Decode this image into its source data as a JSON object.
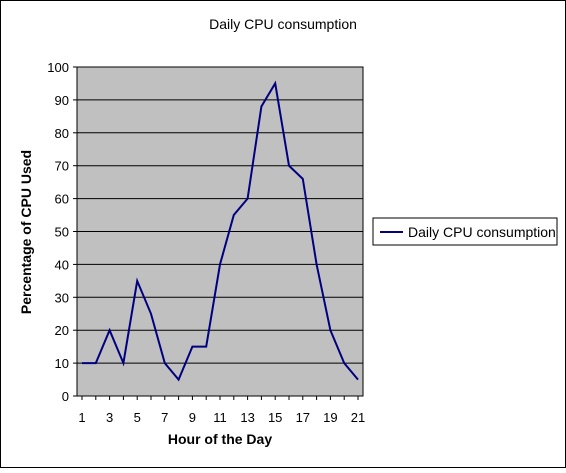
{
  "chart_data": {
    "type": "line",
    "title": "Daily CPU consumption",
    "xlabel": "Hour of the Day",
    "ylabel": "Percentage of CPU Used",
    "x": [
      1,
      2,
      3,
      4,
      5,
      6,
      7,
      8,
      9,
      10,
      11,
      12,
      13,
      14,
      15,
      16,
      17,
      18,
      19,
      20,
      21
    ],
    "series": [
      {
        "name": "Daily CPU consumption",
        "values": [
          10,
          10,
          20,
          10,
          35,
          25,
          10,
          5,
          15,
          15,
          40,
          55,
          60,
          88,
          95,
          70,
          66,
          40,
          20,
          10,
          5
        ]
      }
    ],
    "xticks": [
      "1",
      "3",
      "5",
      "7",
      "9",
      "11",
      "13",
      "15",
      "17",
      "19",
      "21"
    ],
    "yticks": [
      "0",
      "10",
      "20",
      "30",
      "40",
      "50",
      "60",
      "70",
      "80",
      "90",
      "100"
    ],
    "ylim": [
      0,
      100
    ],
    "grid": true,
    "legend_position": "right",
    "colors": {
      "plot_background": "#c0c0c0",
      "line": "#000080",
      "gridline": "#000000",
      "frame": "#000000"
    }
  }
}
